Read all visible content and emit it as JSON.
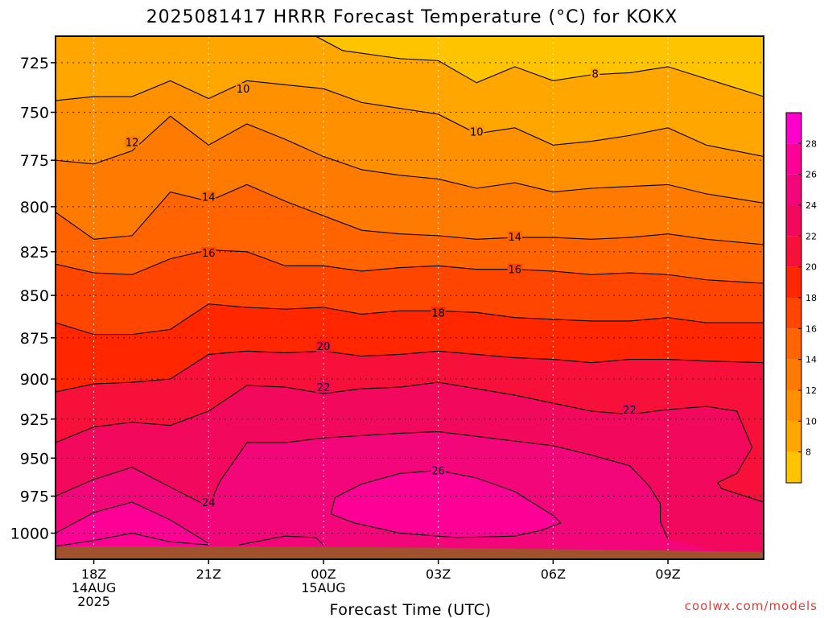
{
  "chart_data": {
    "type": "contour",
    "title": "2025081417 HRRR Forecast Temperature (°C) for KOKX",
    "xlabel": "Forecast Time (UTC)",
    "ylabel": "",
    "x_range_hours": [
      -1,
      17.5
    ],
    "y_range": [
      712,
      1018
    ],
    "y_scale": "log-pressure",
    "x_ticks": [
      {
        "hour": 0,
        "lines": [
          "18Z",
          "14AUG",
          "2025"
        ]
      },
      {
        "hour": 3,
        "lines": [
          "21Z"
        ]
      },
      {
        "hour": 6,
        "lines": [
          "00Z",
          "15AUG"
        ]
      },
      {
        "hour": 9,
        "lines": [
          "03Z"
        ]
      },
      {
        "hour": 12,
        "lines": [
          "06Z"
        ]
      },
      {
        "hour": 15,
        "lines": [
          "09Z"
        ]
      }
    ],
    "y_ticks": [
      725,
      750,
      775,
      800,
      825,
      850,
      875,
      900,
      925,
      950,
      975,
      1000
    ],
    "grid": true,
    "contour_interval": 2,
    "colorbar": {
      "ticks": [
        8,
        10,
        12,
        14,
        16,
        18,
        20,
        22,
        24,
        26,
        28
      ],
      "colors": [
        {
          "from": 6,
          "to": 8,
          "color": "#ffc400"
        },
        {
          "from": 8,
          "to": 10,
          "color": "#ffa600"
        },
        {
          "from": 10,
          "to": 12,
          "color": "#ff9000"
        },
        {
          "from": 12,
          "to": 14,
          "color": "#ff7a00"
        },
        {
          "from": 14,
          "to": 16,
          "color": "#ff6400"
        },
        {
          "from": 16,
          "to": 18,
          "color": "#ff4600"
        },
        {
          "from": 18,
          "to": 20,
          "color": "#ff2600"
        },
        {
          "from": 20,
          "to": 22,
          "color": "#f7103a"
        },
        {
          "from": 22,
          "to": 24,
          "color": "#f2085c"
        },
        {
          "from": 24,
          "to": 26,
          "color": "#f3067a"
        },
        {
          "from": 26,
          "to": 28,
          "color": "#ff0096"
        },
        {
          "from": 28,
          "to": 30,
          "color": "#ff00cc"
        }
      ]
    },
    "ground_color": "#a0522d",
    "surface_pressure": [
      {
        "hour": -1,
        "p": 1009
      },
      {
        "hour": 3,
        "p": 1009
      },
      {
        "hour": 9,
        "p": 1010
      },
      {
        "hour": 15,
        "p": 1012
      },
      {
        "hour": 17.5,
        "p": 1013
      }
    ],
    "contours": [
      {
        "level": 8,
        "points": [
          [
            5.8,
            712
          ],
          [
            6.5,
            719
          ],
          [
            8,
            723
          ],
          [
            9,
            724
          ],
          [
            10,
            735
          ],
          [
            11,
            727
          ],
          [
            12,
            734
          ],
          [
            13,
            731
          ],
          [
            14,
            730
          ],
          [
            15,
            727
          ],
          [
            16,
            733
          ],
          [
            17.5,
            742
          ]
        ]
      },
      {
        "level": 10,
        "points": [
          [
            -1,
            744
          ],
          [
            0,
            742
          ],
          [
            1,
            742
          ],
          [
            2,
            734
          ],
          [
            3,
            743
          ],
          [
            4,
            734
          ],
          [
            5,
            736
          ],
          [
            6,
            738
          ],
          [
            7,
            745
          ],
          [
            8,
            748
          ],
          [
            9,
            751
          ],
          [
            10,
            761
          ],
          [
            11,
            758
          ],
          [
            12,
            767
          ],
          [
            13,
            765
          ],
          [
            14,
            762
          ],
          [
            15,
            758
          ],
          [
            16,
            767
          ],
          [
            17.5,
            773
          ]
        ]
      },
      {
        "level": 12,
        "points": [
          [
            -1,
            775
          ],
          [
            0,
            777
          ],
          [
            1,
            770
          ],
          [
            2,
            752
          ],
          [
            3,
            767
          ],
          [
            4,
            756
          ],
          [
            5,
            764
          ],
          [
            6,
            773
          ],
          [
            7,
            780
          ],
          [
            8,
            783
          ],
          [
            9,
            785
          ],
          [
            10,
            790
          ],
          [
            11,
            787
          ],
          [
            12,
            792
          ],
          [
            13,
            790
          ],
          [
            14,
            789
          ],
          [
            15,
            788
          ],
          [
            16,
            793
          ],
          [
            17.5,
            798
          ]
        ]
      },
      {
        "level": 14,
        "points": [
          [
            -1,
            803
          ],
          [
            0,
            818
          ],
          [
            1,
            816
          ],
          [
            2,
            792
          ],
          [
            3,
            797
          ],
          [
            4,
            788
          ],
          [
            5,
            797
          ],
          [
            6,
            805
          ],
          [
            7,
            813
          ],
          [
            8,
            815
          ],
          [
            9,
            816
          ],
          [
            10,
            818
          ],
          [
            11,
            817
          ],
          [
            12,
            817
          ],
          [
            13,
            818
          ],
          [
            14,
            817
          ],
          [
            15,
            815
          ],
          [
            16,
            818
          ],
          [
            17.5,
            821
          ]
        ]
      },
      {
        "level": 16,
        "points": [
          [
            -1,
            832
          ],
          [
            0,
            837
          ],
          [
            1,
            838
          ],
          [
            2,
            829
          ],
          [
            3,
            824
          ],
          [
            4,
            825
          ],
          [
            5,
            833
          ],
          [
            6,
            833
          ],
          [
            7,
            836
          ],
          [
            8,
            834
          ],
          [
            9,
            833
          ],
          [
            10,
            835
          ],
          [
            11,
            835
          ],
          [
            12,
            836
          ],
          [
            13,
            838
          ],
          [
            14,
            837
          ],
          [
            15,
            838
          ],
          [
            16,
            841
          ],
          [
            17.5,
            843
          ]
        ]
      },
      {
        "level": 18,
        "points": [
          [
            -1,
            866
          ],
          [
            0,
            873
          ],
          [
            1,
            873
          ],
          [
            2,
            870
          ],
          [
            3,
            855
          ],
          [
            4,
            857
          ],
          [
            5,
            858
          ],
          [
            6,
            857
          ],
          [
            7,
            861
          ],
          [
            8,
            859
          ],
          [
            9,
            859
          ],
          [
            10,
            860
          ],
          [
            11,
            863
          ],
          [
            12,
            864
          ],
          [
            13,
            865
          ],
          [
            14,
            865
          ],
          [
            15,
            863
          ],
          [
            16,
            866
          ],
          [
            17.5,
            866
          ]
        ]
      },
      {
        "level": 20,
        "points": [
          [
            -1,
            908
          ],
          [
            0,
            903
          ],
          [
            1,
            902
          ],
          [
            2,
            900
          ],
          [
            3,
            885
          ],
          [
            4,
            883
          ],
          [
            5,
            884
          ],
          [
            6,
            883
          ],
          [
            7,
            886
          ],
          [
            8,
            885
          ],
          [
            9,
            883
          ],
          [
            10,
            885
          ],
          [
            11,
            887
          ],
          [
            12,
            888
          ],
          [
            13,
            890
          ],
          [
            14,
            888
          ],
          [
            15,
            888
          ],
          [
            16,
            889
          ],
          [
            17.5,
            890
          ]
        ]
      },
      {
        "level": 22,
        "points": [
          [
            -1,
            940
          ],
          [
            0,
            930
          ],
          [
            1,
            927
          ],
          [
            2,
            929
          ],
          [
            3,
            920
          ],
          [
            4,
            904
          ],
          [
            5,
            905
          ],
          [
            6,
            909
          ],
          [
            7,
            906
          ],
          [
            8,
            905
          ],
          [
            9,
            902
          ],
          [
            10,
            906
          ],
          [
            11,
            910
          ],
          [
            12,
            915
          ],
          [
            13,
            920
          ],
          [
            14,
            922
          ],
          [
            15,
            919
          ],
          [
            16,
            917
          ],
          [
            16.8,
            920
          ],
          [
            17.2,
            943
          ],
          [
            16.8,
            960
          ],
          [
            16.3,
            966
          ],
          [
            16.4,
            970
          ],
          [
            17.5,
            979
          ]
        ]
      },
      {
        "level": 24,
        "points": [
          [
            -1,
            975
          ],
          [
            0,
            964
          ],
          [
            1,
            956
          ],
          [
            2,
            969
          ],
          [
            3,
            982
          ],
          [
            3.3,
            965
          ],
          [
            4,
            940
          ],
          [
            5,
            940
          ],
          [
            6,
            937
          ],
          [
            8,
            934
          ],
          [
            9,
            933
          ],
          [
            10,
            936
          ],
          [
            11,
            939
          ],
          [
            12,
            942
          ],
          [
            13,
            948
          ],
          [
            14,
            955
          ],
          [
            14.5,
            968
          ],
          [
            14.8,
            980
          ],
          [
            14.8,
            992
          ],
          [
            15,
            1004
          ]
        ]
      },
      {
        "level": 26,
        "points": [
          [
            6.3,
            976
          ],
          [
            7,
            967
          ],
          [
            8,
            960
          ],
          [
            9,
            958
          ],
          [
            10,
            963
          ],
          [
            11,
            972
          ],
          [
            12,
            988
          ],
          [
            12.2,
            993
          ],
          [
            11.7,
            998
          ],
          [
            11,
            1002
          ],
          [
            9.5,
            1003
          ],
          [
            8,
            1000
          ],
          [
            6.8,
            993
          ],
          [
            6.2,
            987
          ],
          [
            6.3,
            976
          ]
        ]
      },
      {
        "level": 28,
        "points": [
          [
            -1,
            1000
          ],
          [
            0,
            986
          ],
          [
            1,
            979
          ],
          [
            2,
            991
          ],
          [
            3,
            1007
          ]
        ]
      },
      {
        "level": 24,
        "points": [
          [
            3.8,
            1008
          ],
          [
            5,
            1002
          ],
          [
            5.8,
            1003
          ],
          [
            6,
            1008
          ]
        ]
      },
      {
        "level": 24,
        "points": [
          [
            -1,
            1009
          ],
          [
            0,
            1005
          ],
          [
            1,
            1000
          ],
          [
            2,
            1006
          ],
          [
            3,
            1008
          ]
        ]
      }
    ],
    "contour_labels": [
      {
        "level": 8,
        "hour": 13.1,
        "p": 730.5
      },
      {
        "level": 10,
        "hour": 3.9,
        "p": 738
      },
      {
        "level": 10,
        "hour": 10.0,
        "p": 760
      },
      {
        "level": 12,
        "hour": 1.0,
        "p": 765.5
      },
      {
        "level": 14,
        "hour": 3.0,
        "p": 794.5
      },
      {
        "level": 14,
        "hour": 11.0,
        "p": 816.5
      },
      {
        "level": 16,
        "hour": 3.0,
        "p": 825.5
      },
      {
        "level": 16,
        "hour": 11.0,
        "p": 835
      },
      {
        "level": 18,
        "hour": 9.0,
        "p": 860
      },
      {
        "level": 20,
        "hour": 6.0,
        "p": 880
      },
      {
        "level": 22,
        "hour": 6.0,
        "p": 905
      },
      {
        "level": 22,
        "hour": 14.0,
        "p": 919
      },
      {
        "level": 24,
        "hour": 3.0,
        "p": 979
      },
      {
        "level": 26,
        "hour": 9.0,
        "p": 958
      }
    ]
  },
  "watermark": "coolwx.com/models"
}
